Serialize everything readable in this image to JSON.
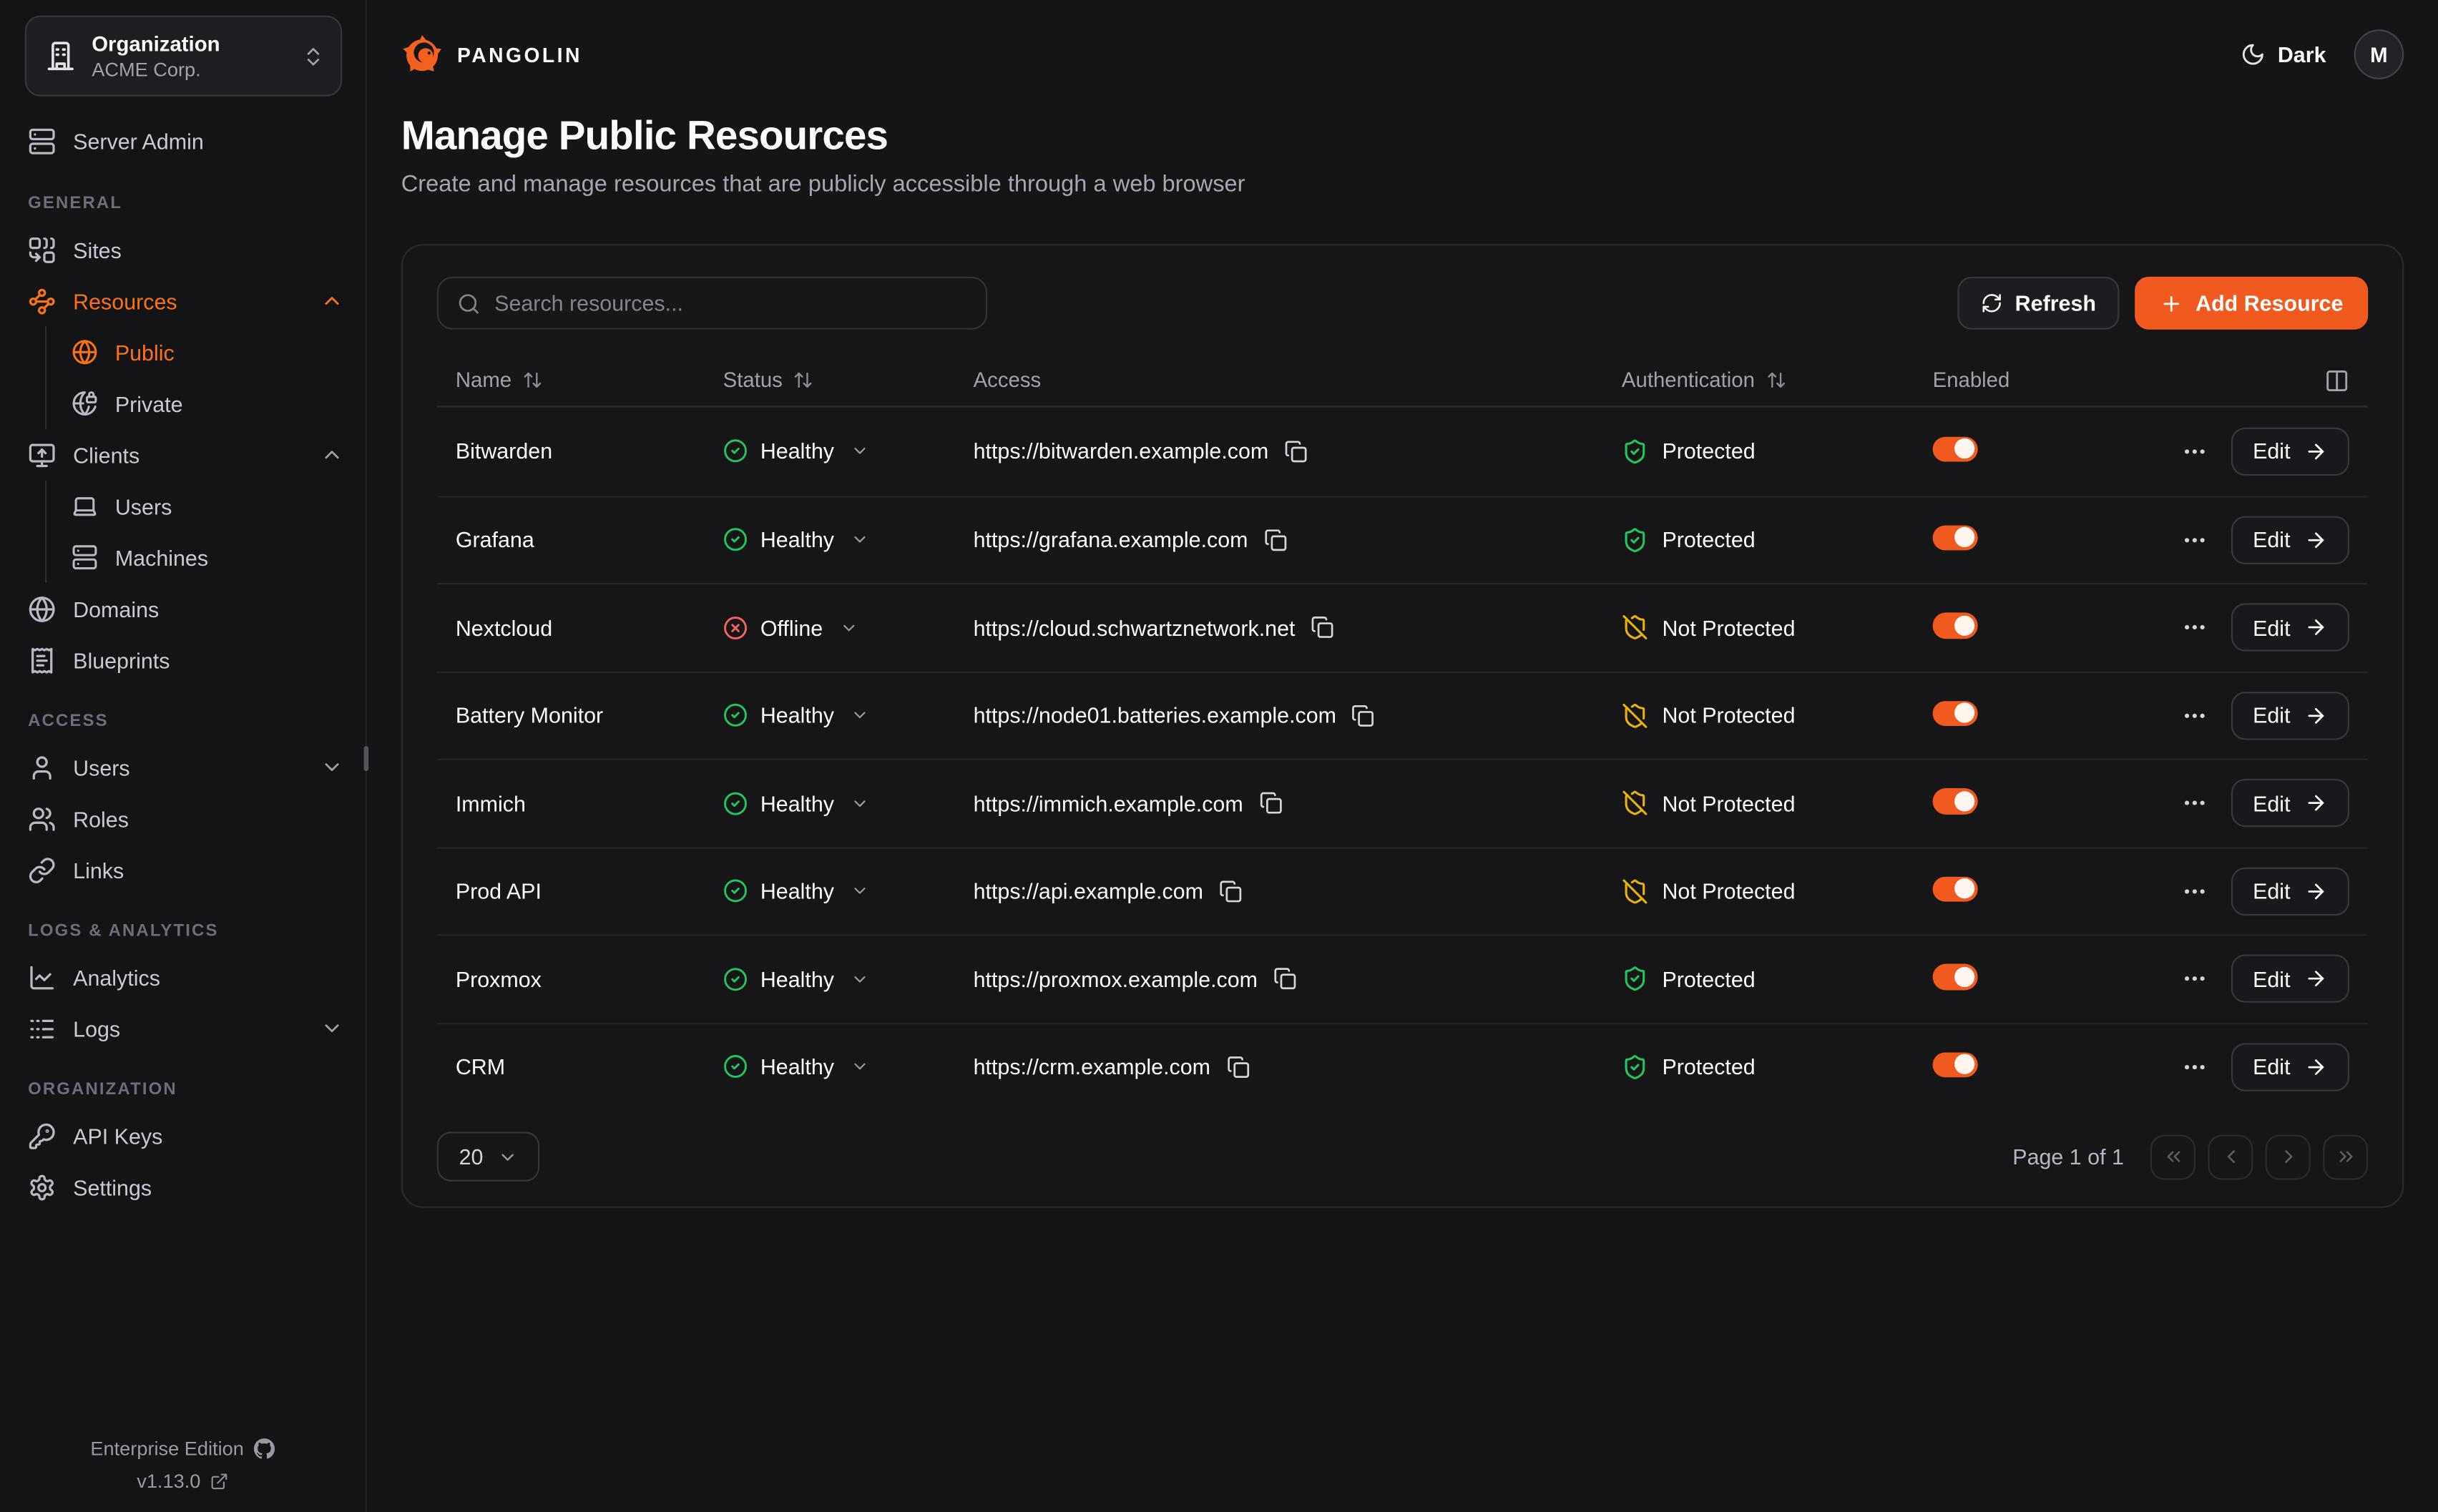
{
  "org": {
    "label": "Organization",
    "name": "ACME Corp."
  },
  "topbar": {
    "brand": "PANGOLIN",
    "theme_label": "Dark",
    "avatar_initial": "M"
  },
  "page": {
    "title": "Manage Public Resources",
    "subtitle": "Create and manage resources that are publicly accessible through a web browser"
  },
  "sidebar": {
    "server_admin": {
      "icon": "server",
      "label": "Server Admin"
    },
    "sections": [
      {
        "heading": "GENERAL",
        "items": [
          {
            "icon": "combine",
            "label": "Sites"
          },
          {
            "icon": "waypoints",
            "label": "Resources",
            "active": true,
            "chevron": "up"
          },
          {
            "icon": "globe",
            "label": "Public",
            "sub": true,
            "active": true
          },
          {
            "icon": "globe-lock",
            "label": "Private",
            "sub": true
          },
          {
            "icon": "monitor-up",
            "label": "Clients",
            "chevron": "up"
          },
          {
            "icon": "laptop",
            "label": "Users",
            "sub": true
          },
          {
            "icon": "server",
            "label": "Machines",
            "sub": true
          },
          {
            "icon": "globe",
            "label": "Domains"
          },
          {
            "icon": "receipt",
            "label": "Blueprints"
          }
        ]
      },
      {
        "heading": "ACCESS",
        "items": [
          {
            "icon": "user",
            "label": "Users",
            "chevron": "down"
          },
          {
            "icon": "users",
            "label": "Roles"
          },
          {
            "icon": "link",
            "label": "Links"
          }
        ]
      },
      {
        "heading": "LOGS & ANALYTICS",
        "items": [
          {
            "icon": "chart",
            "label": "Analytics"
          },
          {
            "icon": "logs",
            "label": "Logs",
            "chevron": "down"
          }
        ]
      },
      {
        "heading": "ORGANIZATION",
        "items": [
          {
            "icon": "key",
            "label": "API Keys"
          },
          {
            "icon": "settings",
            "label": "Settings"
          }
        ]
      }
    ],
    "footer": {
      "edition": "Enterprise Edition",
      "version": "v1.13.0"
    }
  },
  "toolbar": {
    "search_placeholder": "Search resources...",
    "refresh_label": "Refresh",
    "add_resource_label": "Add Resource"
  },
  "table": {
    "headers": {
      "name": "Name",
      "status": "Status",
      "access": "Access",
      "authentication": "Authentication",
      "enabled": "Enabled"
    },
    "edit_label": "Edit",
    "rows": [
      {
        "name": "Bitwarden",
        "status": "Healthy",
        "status_state": "healthy",
        "url": "https://bitwarden.example.com",
        "auth": "Protected",
        "auth_state": "protected",
        "enabled": true
      },
      {
        "name": "Grafana",
        "status": "Healthy",
        "status_state": "healthy",
        "url": "https://grafana.example.com",
        "auth": "Protected",
        "auth_state": "protected",
        "enabled": true
      },
      {
        "name": "Nextcloud",
        "status": "Offline",
        "status_state": "offline",
        "url": "https://cloud.schwartznetwork.net",
        "auth": "Not Protected",
        "auth_state": "unprotected",
        "enabled": true
      },
      {
        "name": "Battery Monitor",
        "status": "Healthy",
        "status_state": "healthy",
        "url": "https://node01.batteries.example.com",
        "auth": "Not Protected",
        "auth_state": "unprotected",
        "enabled": true
      },
      {
        "name": "Immich",
        "status": "Healthy",
        "status_state": "healthy",
        "url": "https://immich.example.com",
        "auth": "Not Protected",
        "auth_state": "unprotected",
        "enabled": true
      },
      {
        "name": "Prod API",
        "status": "Healthy",
        "status_state": "healthy",
        "url": "https://api.example.com",
        "auth": "Not Protected",
        "auth_state": "unprotected",
        "enabled": true
      },
      {
        "name": "Proxmox",
        "status": "Healthy",
        "status_state": "healthy",
        "url": "https://proxmox.example.com",
        "auth": "Protected",
        "auth_state": "protected",
        "enabled": true
      },
      {
        "name": "CRM",
        "status": "Healthy",
        "status_state": "healthy",
        "url": "https://crm.example.com",
        "auth": "Protected",
        "auth_state": "protected",
        "enabled": true
      }
    ]
  },
  "pagination": {
    "page_size": "20",
    "info": "Page 1 of 1"
  },
  "colors": {
    "accent": "#f05a1e",
    "accent_text": "#f97316",
    "green": "#22c55e",
    "red": "#f26262",
    "amber": "#eab308",
    "logo_orange": "#f4611f"
  }
}
